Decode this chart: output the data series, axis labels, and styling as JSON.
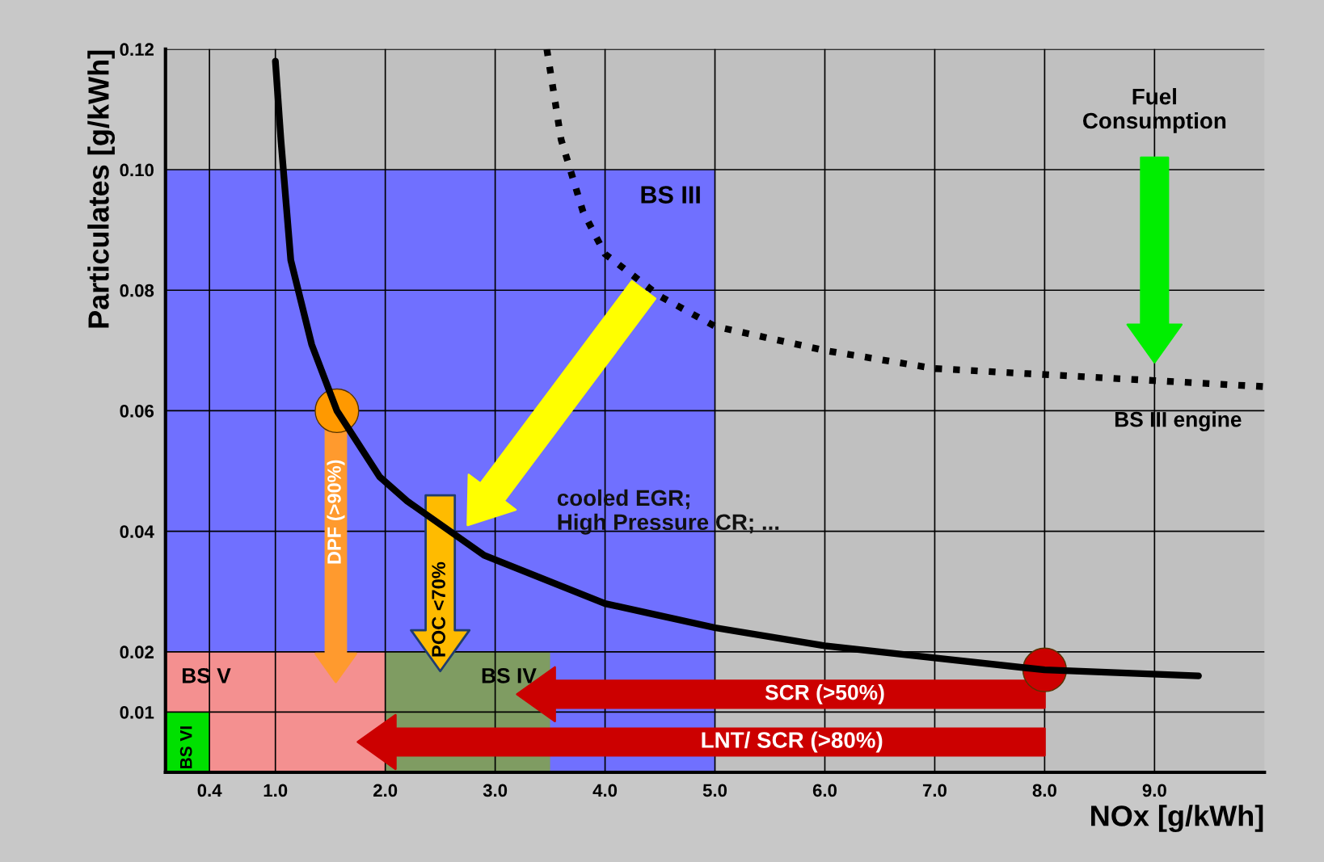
{
  "chart_data": {
    "type": "line",
    "xlabel": "NOx [g/kWh]",
    "ylabel": "Particulates [g/kWh]",
    "xlim": [
      0,
      10
    ],
    "ylim": [
      0,
      0.12
    ],
    "xticks": [
      0.4,
      {
        "value": 1,
        "label": "1.0"
      },
      {
        "value": 2,
        "label": "2.0"
      },
      {
        "value": 3,
        "label": "3.0"
      },
      {
        "value": 4,
        "label": "4.0"
      },
      {
        "value": 5,
        "label": "5.0"
      },
      {
        "value": 6,
        "label": "6.0"
      },
      {
        "value": 7,
        "label": "7.0"
      },
      {
        "value": 8,
        "label": "8.0"
      },
      {
        "value": 9,
        "label": "9.0"
      }
    ],
    "yticks": [
      0.01,
      0.02,
      0.04,
      0.06,
      0.08,
      {
        "value": 0.1,
        "label": "0.10"
      },
      0.12
    ],
    "grid": true,
    "legend": false,
    "series": [
      {
        "type": "area",
        "name": "BS III",
        "color": "#7070ff",
        "x": [
          0,
          5
        ],
        "values": [
          0.1,
          0.1
        ]
      },
      {
        "type": "area",
        "name": "BS IV",
        "color": "#7f9c62",
        "x": [
          0,
          3.5
        ],
        "values": [
          0.02,
          0.02
        ]
      },
      {
        "type": "area",
        "name": "BS V",
        "color": "#f49090",
        "x": [
          0,
          2
        ],
        "values": [
          0.02,
          0.02
        ]
      },
      {
        "type": "area",
        "name": "BS VI",
        "color": "#00e000",
        "x": [
          0,
          0.4
        ],
        "values": [
          0.01,
          0.01
        ]
      },
      {
        "color": "#000000",
        "line_style": "solid",
        "x": [
          1.0,
          1.05,
          1.14,
          1.33,
          1.56,
          1.95,
          2.2,
          2.9,
          4.0,
          5.0,
          6.0,
          7.0,
          8.0,
          9.4
        ],
        "values": [
          0.118,
          0.105,
          0.085,
          0.071,
          0.06,
          0.049,
          0.045,
          0.036,
          0.028,
          0.024,
          0.021,
          0.019,
          0.017,
          0.016
        ]
      },
      {
        "name": "BS III engine",
        "color": "#000000",
        "line_style": "dotted",
        "x": [
          3.47,
          3.6,
          3.8,
          4.0,
          4.5,
          5.0,
          6.0,
          7.0,
          8.0,
          9.0,
          10.0
        ],
        "values": [
          0.12,
          0.105,
          0.093,
          0.086,
          0.079,
          0.074,
          0.07,
          0.067,
          0.066,
          0.065,
          0.064
        ]
      },
      {
        "type": "scatter",
        "color": "#ff9900",
        "marker": "circle",
        "x": [
          1.56
        ],
        "values": [
          0.06
        ]
      },
      {
        "type": "scatter",
        "color": "#cc0000",
        "marker": "circle",
        "x": [
          8.0
        ],
        "values": [
          0.017
        ]
      }
    ],
    "annotations": [
      "DPF (>90%)",
      "POC <70%",
      "cooled EGR;\nHigh Pressure CR; ...",
      "SCR (>50%)",
      "LNT/ SCR (>80%)",
      "Fuel\nConsumption"
    ]
  }
}
